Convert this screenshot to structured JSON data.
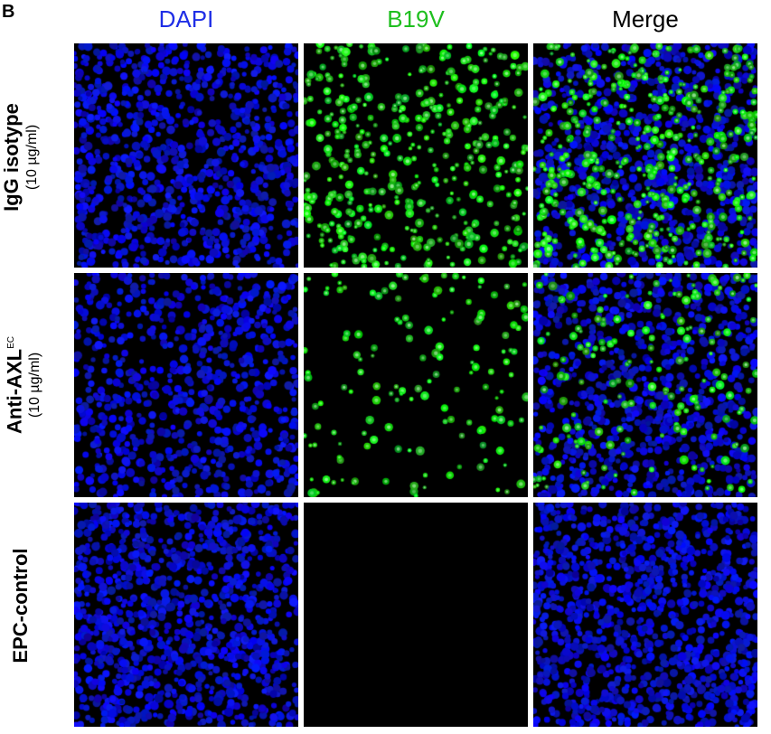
{
  "panel_letter": "B",
  "columns": [
    {
      "label": "DAPI",
      "color": "#1f2ee6"
    },
    {
      "label": "B19V",
      "color": "#1fbf1f"
    },
    {
      "label": "Merge",
      "color": "#000000"
    }
  ],
  "rows": [
    {
      "label": "IgG isotype",
      "superscript": "",
      "sub": "(10 µg/ml)"
    },
    {
      "label": "Anti-AXL",
      "superscript": "EC",
      "sub": "(10 µg/ml)"
    },
    {
      "label": "EPC-control",
      "superscript": "",
      "sub": ""
    }
  ],
  "colors": {
    "dapi": "#1a1aff",
    "b19v": "#22dd22",
    "background": "#000000"
  }
}
